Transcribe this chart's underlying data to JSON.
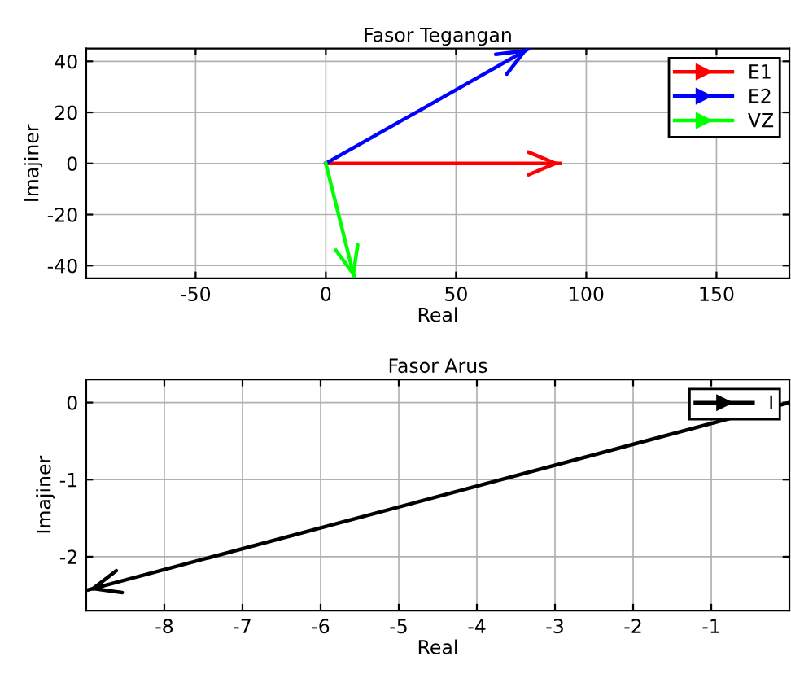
{
  "chart_data": [
    {
      "type": "line",
      "title": "Fasor Tegangan",
      "xlabel": "Real",
      "ylabel": "Imajiner",
      "xlim": [
        -92,
        178
      ],
      "ylim": [
        -45,
        45
      ],
      "xticks": [
        -50,
        0,
        50,
        100,
        150
      ],
      "yticks": [
        -40,
        -20,
        0,
        20,
        40
      ],
      "grid": true,
      "legend": "top right",
      "marker": "none",
      "line_style": "solid",
      "series": [
        {
          "name": "E1",
          "color": "#ff0000",
          "x": [
            0,
            90
          ],
          "values": [
            0,
            0
          ]
        },
        {
          "name": "E2",
          "color": "#0000ff",
          "x": [
            0,
            78
          ],
          "values": [
            0,
            45
          ]
        },
        {
          "name": "VZ",
          "color": "#00ff00",
          "x": [
            0,
            11
          ],
          "values": [
            0,
            -45
          ]
        }
      ]
    },
    {
      "type": "line",
      "title": "Fasor Arus",
      "xlabel": "Real",
      "ylabel": "Imajiner",
      "xlim": [
        -9,
        0
      ],
      "ylim": [
        -2.7,
        0.3
      ],
      "xticks": [
        -8,
        -7,
        -6,
        -5,
        -4,
        -3,
        -2,
        -1
      ],
      "yticks": [
        -2,
        -1,
        0
      ],
      "grid": true,
      "legend": "top right",
      "marker": "none",
      "line_style": "solid",
      "series": [
        {
          "name": "I",
          "color": "#000000",
          "x": [
            0,
            -8.97
          ],
          "values": [
            0,
            -2.43
          ]
        }
      ]
    }
  ]
}
